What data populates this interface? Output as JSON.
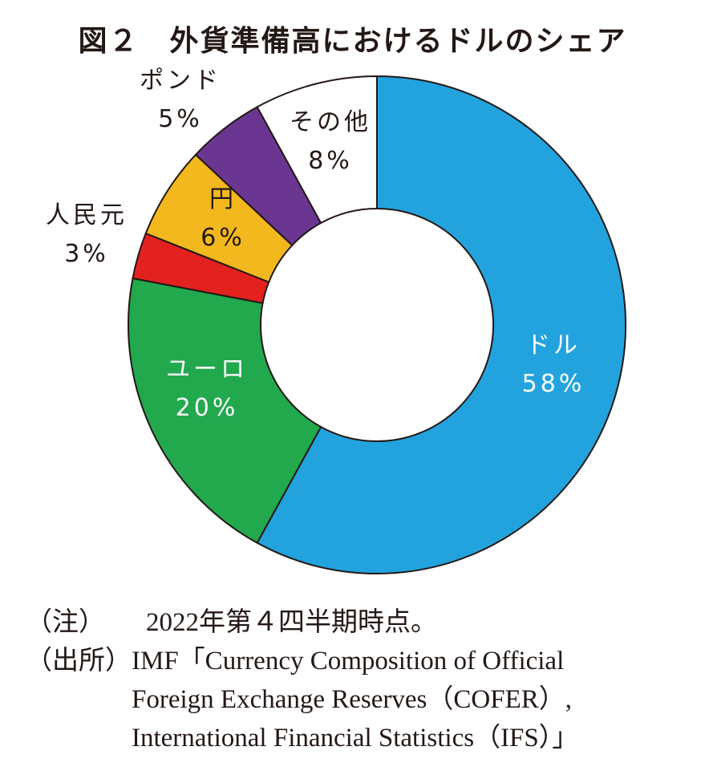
{
  "chart_data": {
    "type": "pie",
    "donut": true,
    "title": "図２　外貨準備高におけるドルのシェア",
    "start": "top, clockwise",
    "slices": [
      {
        "label": "ドル",
        "value": 58,
        "value_label": "58%",
        "color": "#22a3dd"
      },
      {
        "label": "ユーロ",
        "value": 20,
        "value_label": "20%",
        "color": "#22a84d"
      },
      {
        "label": "人民元",
        "value": 3,
        "value_label": "3%",
        "color": "#e3211f"
      },
      {
        "label": "円",
        "value": 6,
        "value_label": "6%",
        "color": "#f3b81d"
      },
      {
        "label": "ポンド",
        "value": 5,
        "value_label": "5%",
        "color": "#6a3691"
      },
      {
        "label": "その他",
        "value": 8,
        "value_label": "8%",
        "color": "#ffffff"
      }
    ]
  },
  "notes": [
    {
      "label": "（注）",
      "lines": [
        "2022年第４四半期時点。"
      ]
    },
    {
      "label": "（出所）",
      "lines": [
        "IMF「Currency Composition of Official",
        "Foreign Exchange Reserves（COFER）,",
        "International Financial Statistics（IFS）」"
      ]
    }
  ]
}
